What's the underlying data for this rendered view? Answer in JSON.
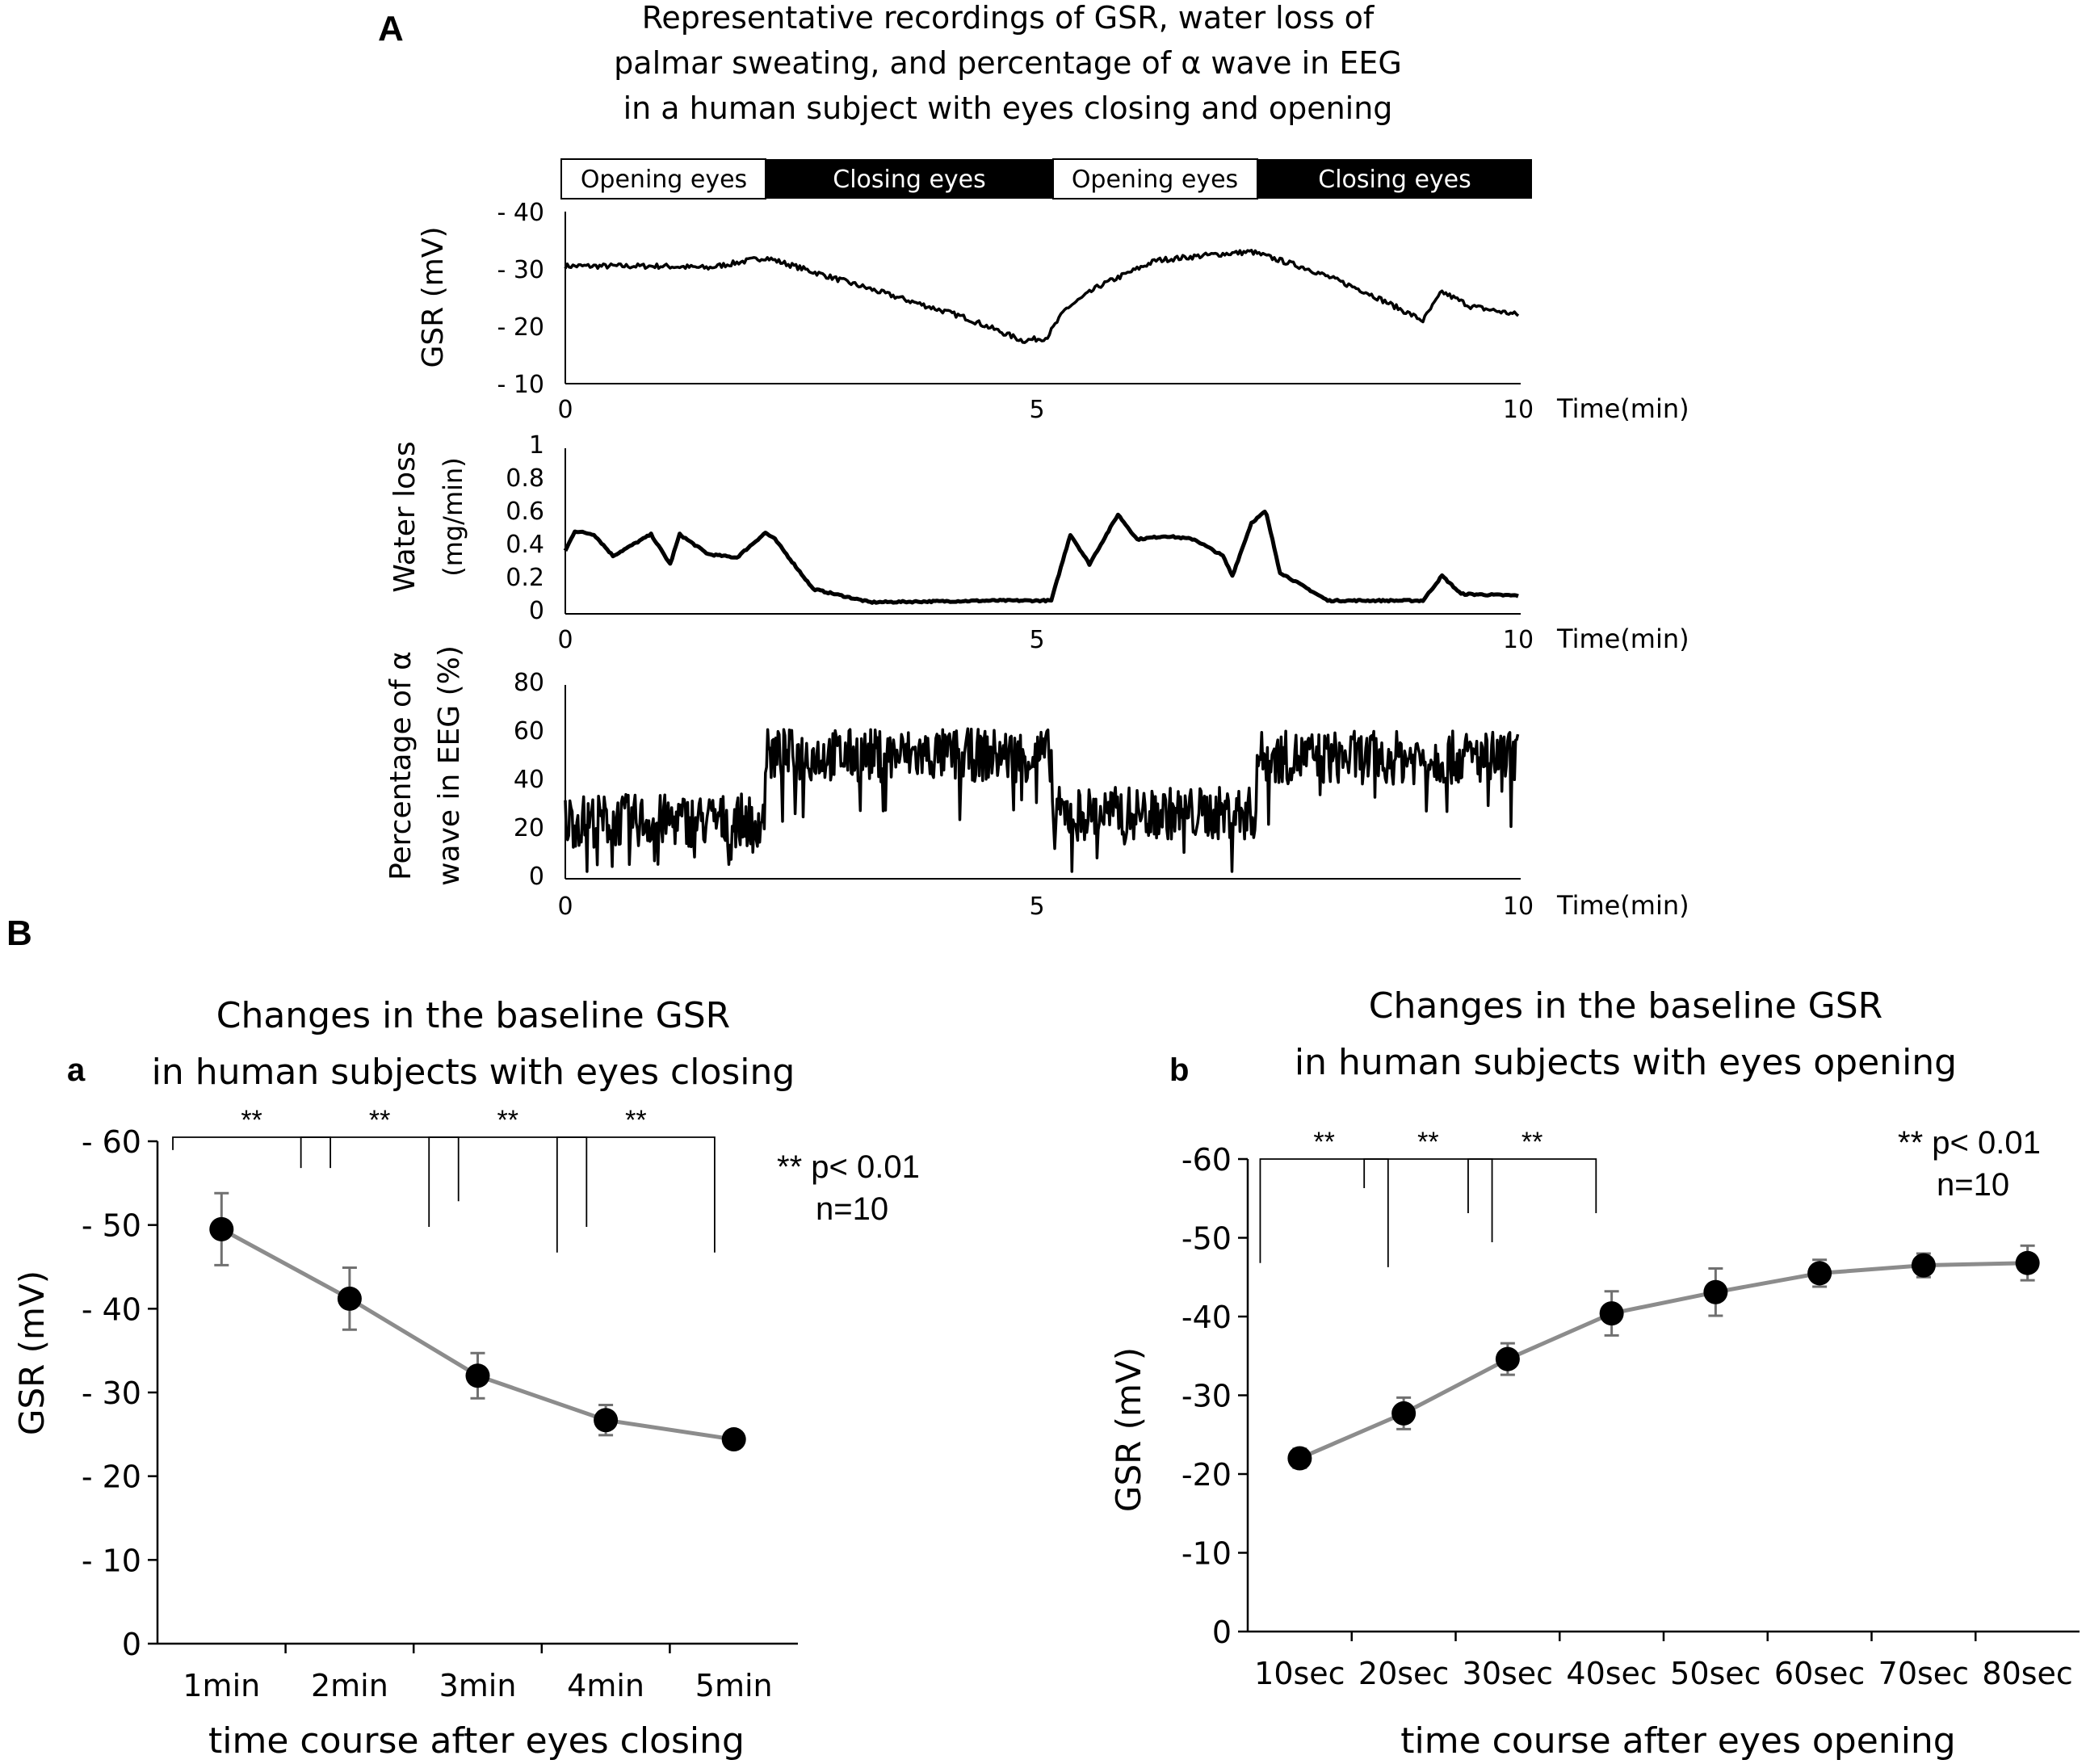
{
  "panel_A": {
    "label": "A",
    "title": [
      "Representative recordings of GSR, water loss of",
      "palmar sweating, and percentage of α wave in EEG",
      "in a human subject with eyes closing and opening"
    ],
    "condition_bar": [
      {
        "label": "Opening eyes",
        "state": "open",
        "from": 0,
        "to": 2.1
      },
      {
        "label": "Closing eyes",
        "state": "closed",
        "from": 2.1,
        "to": 5.1
      },
      {
        "label": "Opening eyes",
        "state": "open",
        "from": 5.1,
        "to": 7.25
      },
      {
        "label": "Closing eyes",
        "state": "closed",
        "from": 7.25,
        "to": 10
      }
    ]
  },
  "panel_B": {
    "label": "B",
    "significance_note": "** p< 0.01",
    "n_note": "n=10"
  },
  "colors": {
    "trace": "#000000",
    "bar_closed": "#000000",
    "bar_open": "#ffffff",
    "mean_line": "#8c8c8c",
    "error_bar": "#707070",
    "marker": "#000000"
  },
  "chart_data": [
    {
      "id": "gsr_trace",
      "type": "line",
      "ylabel": "GSR (mV)",
      "xlabel": "Time(min)",
      "xlim": [
        0,
        10
      ],
      "x_ticks": [
        "0",
        "5",
        "10"
      ],
      "ylim": [
        10,
        40
      ],
      "y_ticks": [
        "- 40",
        "- 30",
        "- 20",
        "- 10"
      ],
      "x": [
        0,
        0.5,
        1.0,
        1.5,
        2.1,
        2.8,
        3.5,
        4.2,
        4.8,
        5.05,
        5.25,
        5.6,
        6.2,
        6.8,
        7.2,
        7.8,
        8.4,
        9.0,
        9.2,
        9.5,
        10
      ],
      "y": [
        30.5,
        30.5,
        30.5,
        30.2,
        32.0,
        28.5,
        25.0,
        21.5,
        17.5,
        18.0,
        23.0,
        27.0,
        31.5,
        32.5,
        33.0,
        30.0,
        26.0,
        21.0,
        26.0,
        23.5,
        22.0
      ]
    },
    {
      "id": "water_loss_trace",
      "type": "line",
      "ylabel": [
        "Water loss",
        "(mg/min)"
      ],
      "xlabel": "Time(min)",
      "xlim": [
        0,
        10
      ],
      "x_ticks": [
        "0",
        "5",
        "10"
      ],
      "ylim": [
        0,
        1
      ],
      "y_ticks": [
        "1",
        "0.8",
        "0.6",
        "0.4",
        "0.2",
        "0"
      ],
      "x": [
        0,
        0.1,
        0.3,
        0.5,
        0.9,
        1.1,
        1.2,
        1.5,
        1.8,
        2.1,
        2.2,
        2.6,
        3.2,
        4.5,
        5.1,
        5.3,
        5.5,
        5.8,
        6.0,
        6.3,
        6.6,
        6.9,
        7.0,
        7.2,
        7.35,
        7.5,
        8.0,
        9.0,
        9.2,
        9.4,
        10
      ],
      "y": [
        0.38,
        0.5,
        0.48,
        0.35,
        0.48,
        0.3,
        0.48,
        0.36,
        0.34,
        0.49,
        0.45,
        0.15,
        0.07,
        0.08,
        0.08,
        0.48,
        0.3,
        0.6,
        0.45,
        0.47,
        0.45,
        0.35,
        0.23,
        0.55,
        0.62,
        0.25,
        0.08,
        0.08,
        0.23,
        0.12,
        0.11
      ]
    },
    {
      "id": "alpha_wave_trace",
      "type": "line",
      "ylabel": [
        "Percentage of α",
        "wave in EEG (%)"
      ],
      "xlabel": "Time(min)",
      "xlim": [
        0,
        10
      ],
      "x_ticks": [
        "0",
        "5",
        "10"
      ],
      "ylim": [
        0,
        80
      ],
      "y_ticks": [
        "80",
        "60",
        "40",
        "20",
        "0"
      ],
      "segments": [
        {
          "from": 0,
          "to": 2.1,
          "mean": 24
        },
        {
          "from": 2.1,
          "to": 5.1,
          "mean": 51
        },
        {
          "from": 5.1,
          "to": 7.25,
          "mean": 27
        },
        {
          "from": 7.25,
          "to": 10,
          "mean": 50
        }
      ]
    },
    {
      "id": "eyes_closing",
      "type": "line",
      "label": "a",
      "title": [
        "Changes in the baseline GSR",
        "in human subjects with eyes closing"
      ],
      "ylabel": "GSR (mV)",
      "xlabel": "time course after eyes closing",
      "categories": [
        "1min",
        "2min",
        "3min",
        "4min",
        "5min"
      ],
      "values": [
        49.5,
        41.2,
        32.0,
        26.7,
        24.4
      ],
      "errors": [
        4.3,
        3.7,
        2.7,
        1.8,
        0.7
      ],
      "ylim": [
        0,
        60
      ],
      "y_ticks": [
        "0",
        "- 10",
        "- 20",
        "- 30",
        "- 40",
        "- 50",
        "- 60"
      ],
      "significance": [
        {
          "from": 0,
          "to": 1,
          "label": "**",
          "drop_left": 0.25,
          "drop_right": 0.6
        },
        {
          "from": 1,
          "to": 2,
          "label": "**",
          "drop_left": 0.6,
          "drop_right": 1.25
        },
        {
          "from": 2,
          "to": 3,
          "label": "**",
          "drop_left": 1.75,
          "drop_right": 1.75
        },
        {
          "from": 3,
          "to": 4,
          "label": "**",
          "drop_left": 2.25,
          "drop_right": 2.25
        }
      ]
    },
    {
      "id": "eyes_opening",
      "type": "line",
      "label": "b",
      "title": [
        "Changes in the baseline GSR",
        "in human subjects with eyes opening"
      ],
      "ylabel": "GSR (mV)",
      "xlabel": "time course after eyes opening",
      "categories": [
        "10sec",
        "20sec",
        "30sec",
        "40sec",
        "50sec",
        "60sec",
        "70sec",
        "80sec"
      ],
      "values": [
        22.0,
        27.7,
        34.6,
        40.4,
        43.1,
        45.5,
        46.5,
        46.8
      ],
      "errors": [
        1.2,
        2.0,
        2.0,
        2.8,
        3.0,
        1.7,
        1.5,
        2.2
      ],
      "ylim": [
        0,
        60
      ],
      "y_ticks": [
        "0",
        "-10",
        "-20",
        "-30",
        "-40",
        "-50",
        "-60"
      ],
      "significance": [
        {
          "from": 0,
          "to": 1,
          "label": "**",
          "drop_left": 2.5,
          "drop_right": 2.6
        },
        {
          "from": 1,
          "to": 2,
          "label": "**",
          "drop_left": 0.7,
          "drop_right": 2.0
        },
        {
          "from": 2,
          "to": 3,
          "label": "**",
          "drop_left": 1.3,
          "drop_right": 1.3
        }
      ]
    }
  ]
}
